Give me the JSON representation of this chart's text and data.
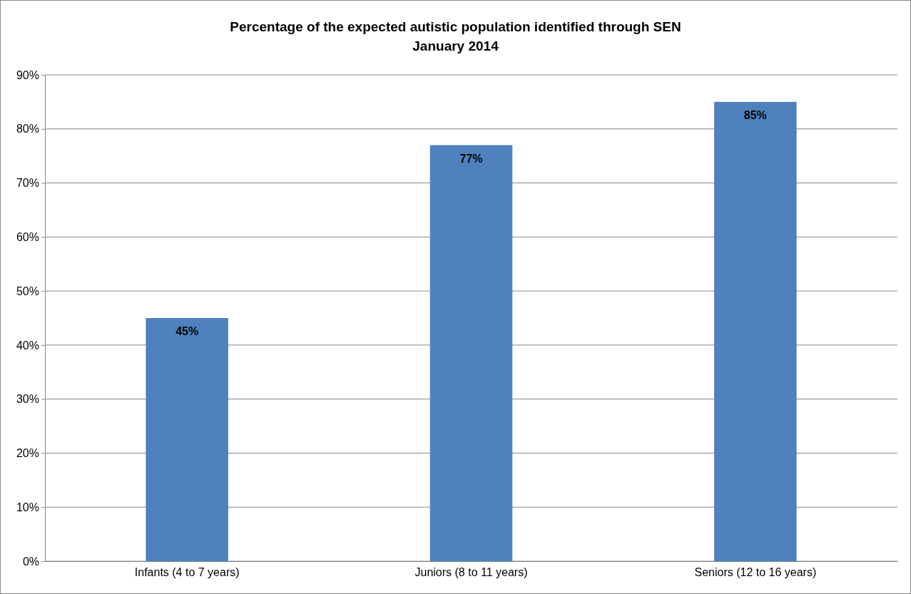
{
  "chart_data": {
    "type": "bar",
    "title": "Percentage of the expected autistic population identified through SEN",
    "subtitle": "January 2014",
    "categories": [
      "Infants (4 to 7 years)",
      "Juniors (8 to 11 years)",
      "Seniors (12 to 16 years)"
    ],
    "values": [
      45,
      77,
      85
    ],
    "value_labels": [
      "45%",
      "77%",
      "85%"
    ],
    "color": "#4f81bd",
    "ylim": [
      0,
      90
    ],
    "yticks": [
      {
        "value": 0,
        "label": "0%"
      },
      {
        "value": 10,
        "label": "10%"
      },
      {
        "value": 20,
        "label": "20%"
      },
      {
        "value": 30,
        "label": "30%"
      },
      {
        "value": 40,
        "label": "40%"
      },
      {
        "value": 50,
        "label": "50%"
      },
      {
        "value": 60,
        "label": "60%"
      },
      {
        "value": 70,
        "label": "70%"
      },
      {
        "value": 80,
        "label": "80%"
      },
      {
        "value": 90,
        "label": "90%"
      }
    ],
    "grid": "y"
  }
}
